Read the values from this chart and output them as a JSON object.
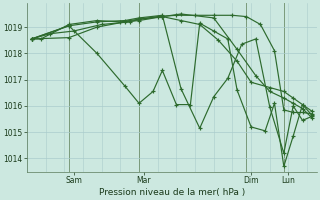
{
  "background_color": "#cce8e0",
  "grid_color": "#aacccc",
  "line_color": "#2d6a2d",
  "xlabel": "Pression niveau de la mer( hPa )",
  "ylim": [
    1013.5,
    1019.9
  ],
  "yticks": [
    1014,
    1015,
    1016,
    1017,
    1018,
    1019
  ],
  "xlim": [
    0,
    310
  ],
  "vlines_x": [
    45,
    120,
    235,
    275
  ],
  "xtick_labels": [
    [
      "Sam",
      50
    ],
    [
      "Mar",
      125
    ],
    [
      "Dim",
      240
    ],
    [
      "Lun",
      280
    ]
  ],
  "series": [
    {
      "x": [
        5,
        15,
        45,
        75,
        100,
        120,
        140,
        160,
        180,
        200,
        220,
        235,
        250,
        265,
        275,
        285,
        295,
        305
      ],
      "y": [
        1018.55,
        1018.55,
        1019.1,
        1019.25,
        1019.2,
        1019.3,
        1019.4,
        1019.45,
        1019.45,
        1019.45,
        1019.45,
        1019.4,
        1019.1,
        1018.1,
        1015.85,
        1015.75,
        1015.75,
        1015.7
      ]
    },
    {
      "x": [
        5,
        45,
        75,
        105,
        120,
        145,
        165,
        185,
        200,
        215,
        230,
        245,
        260,
        275,
        285,
        295,
        305
      ],
      "y": [
        1018.55,
        1019.05,
        1019.2,
        1019.25,
        1019.35,
        1019.45,
        1016.65,
        1015.15,
        1016.35,
        1017.05,
        1018.35,
        1018.55,
        1015.95,
        1014.2,
        1016.0,
        1015.45,
        1015.6
      ]
    },
    {
      "x": [
        5,
        25,
        50,
        80,
        110,
        120,
        145,
        165,
        185,
        205,
        225,
        240,
        260,
        275,
        285,
        295,
        305
      ],
      "y": [
        1018.55,
        1018.75,
        1018.85,
        1019.1,
        1019.2,
        1019.3,
        1019.4,
        1019.25,
        1019.1,
        1018.5,
        1017.7,
        1016.9,
        1016.7,
        1016.55,
        1016.3,
        1016.05,
        1015.65
      ]
    },
    {
      "x": [
        5,
        45,
        75,
        105,
        120,
        145,
        165,
        200,
        225,
        245,
        260,
        275,
        285,
        295,
        305
      ],
      "y": [
        1018.55,
        1018.6,
        1019.0,
        1019.2,
        1019.25,
        1019.4,
        1019.5,
        1019.35,
        1018.15,
        1017.15,
        1016.55,
        1016.3,
        1016.1,
        1015.9,
        1015.55
      ]
    },
    {
      "x": [
        5,
        45,
        75,
        105,
        120,
        135,
        145,
        160,
        175,
        185,
        200,
        215,
        225,
        240,
        255,
        265,
        275,
        285,
        295,
        305
      ],
      "y": [
        1018.55,
        1019.05,
        1018.0,
        1016.75,
        1016.1,
        1016.55,
        1017.35,
        1016.05,
        1016.05,
        1019.15,
        1018.85,
        1018.55,
        1016.6,
        1015.2,
        1015.05,
        1016.1,
        1013.7,
        1014.85,
        1016.05,
        1015.8
      ]
    }
  ]
}
